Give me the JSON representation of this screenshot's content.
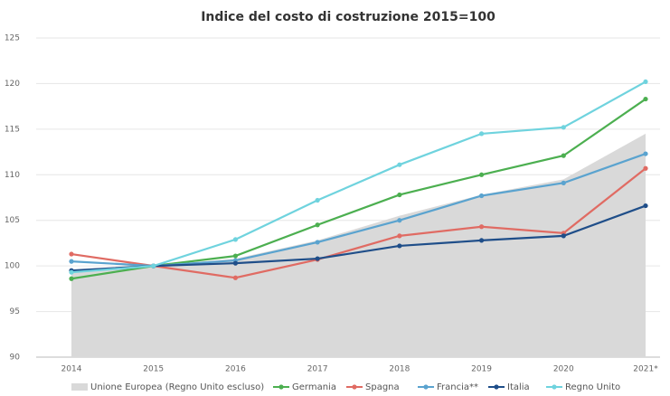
{
  "chart_data": {
    "type": "line",
    "title": "Indice del costo di costruzione 2015=100",
    "categories": [
      "2014",
      "2015",
      "2016",
      "2017",
      "2018",
      "2019",
      "2020",
      "2021*"
    ],
    "series": [
      {
        "name": "Unione Europea (Regno Unito escluso)",
        "color": "#d9d9d9",
        "kind": "area",
        "values": [
          99.4,
          100,
          100.8,
          102.8,
          105.5,
          107.8,
          109.5,
          114.5
        ]
      },
      {
        "name": "Germania",
        "color": "#4caf50",
        "values": [
          98.6,
          100,
          101.1,
          104.5,
          107.8,
          110.0,
          112.1,
          118.3
        ]
      },
      {
        "name": "Spagna",
        "color": "#e06b63",
        "values": [
          101.3,
          100,
          98.7,
          100.7,
          103.3,
          104.3,
          103.6,
          110.7
        ]
      },
      {
        "name": "Francia**",
        "color": "#5aa3cf",
        "values": [
          100.5,
          100,
          100.6,
          102.6,
          105.0,
          107.7,
          109.1,
          112.3
        ]
      },
      {
        "name": "Italia",
        "color": "#1f4e89",
        "values": [
          99.5,
          100,
          100.3,
          100.8,
          102.2,
          102.8,
          103.3,
          106.6
        ]
      },
      {
        "name": "Regno Unito",
        "color": "#6fd3de",
        "values": [
          99.3,
          100,
          102.9,
          107.2,
          111.1,
          114.5,
          115.2,
          120.2
        ]
      }
    ],
    "ylim": [
      90,
      125
    ],
    "yticks": [
      90,
      95,
      100,
      105,
      110,
      115,
      120,
      125
    ],
    "grid": true
  }
}
